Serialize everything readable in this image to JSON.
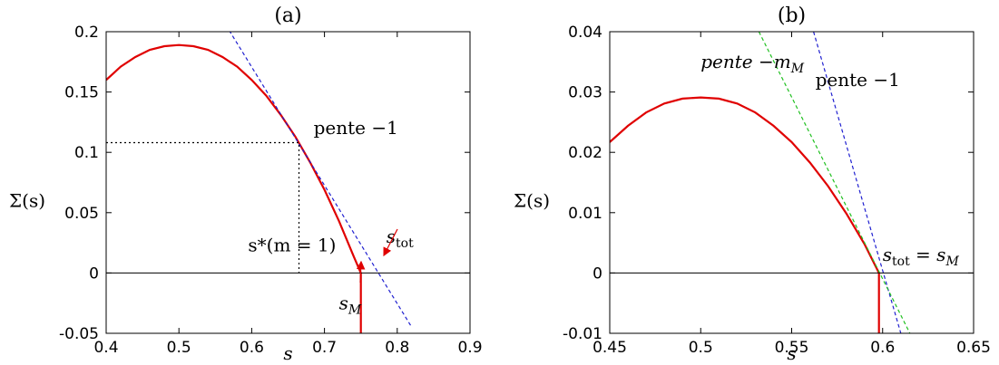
{
  "chart_data": [
    {
      "type": "line",
      "title": "(a)",
      "xlabel": "s",
      "ylabel": "Σ(s)",
      "xlim": [
        0.4,
        0.9
      ],
      "ylim": [
        -0.05,
        0.2
      ],
      "xticks": [
        0.4,
        0.5,
        0.6,
        0.7,
        0.8,
        0.9
      ],
      "xtick_labels": [
        "0.4",
        "0.5",
        "0.6",
        "0.7",
        "0.8",
        "0.9"
      ],
      "yticks": [
        -0.05,
        0,
        0.05,
        0.1,
        0.15,
        0.2
      ],
      "ytick_labels": [
        "-0.05",
        "0",
        "0.05",
        "0.1",
        "0.15",
        "0.2"
      ],
      "grid": false,
      "series": [
        {
          "color": "#e00000",
          "style": "solid",
          "x": [
            0.4,
            0.42,
            0.44,
            0.46,
            0.48,
            0.5,
            0.52,
            0.54,
            0.56,
            0.58,
            0.6,
            0.62,
            0.64,
            0.66,
            0.68,
            0.7,
            0.72,
            0.74,
            0.75
          ],
          "y": [
            0.16,
            0.171,
            0.179,
            0.185,
            0.188,
            0.189,
            0.188,
            0.185,
            0.179,
            0.171,
            0.16,
            0.147,
            0.131,
            0.113,
            0.092,
            0.069,
            0.043,
            0.014,
            0.0
          ]
        },
        {
          "color": "#e00000",
          "style": "solid",
          "x": [
            0.75,
            0.75
          ],
          "y": [
            0.0,
            -0.05
          ]
        },
        {
          "color": "#2020d0",
          "style": "dashed",
          "x": [
            0.56,
            0.82
          ],
          "y": [
            0.21,
            -0.045
          ]
        },
        {
          "color": "#000000",
          "style": "dotted",
          "x": [
            0.4,
            0.665,
            0.665
          ],
          "y": [
            0.108,
            0.108,
            0.0
          ]
        },
        {
          "color": "#000000",
          "style": "solid",
          "x": [
            0.4,
            0.9
          ],
          "y": [
            0.0,
            0.0
          ]
        }
      ],
      "annotations": [
        {
          "text": "pente −1",
          "x": 0.685,
          "y": 0.115
        },
        {
          "text": "s*(m = 1)",
          "x": 0.595,
          "y": 0.018
        },
        {
          "text_main": "s",
          "text_sub": "tot",
          "x": 0.785,
          "y": 0.025
        },
        {
          "text_main": "s",
          "text_sub": "M",
          "x": 0.72,
          "y": -0.03
        }
      ]
    },
    {
      "type": "line",
      "title": "(b)",
      "xlabel": "s",
      "ylabel": "Σ(s)",
      "xlim": [
        0.45,
        0.65
      ],
      "ylim": [
        -0.01,
        0.04
      ],
      "xticks": [
        0.45,
        0.5,
        0.55,
        0.6,
        0.65
      ],
      "xtick_labels": [
        "0.45",
        "0.5",
        "0.55",
        "0.6",
        "0.65"
      ],
      "yticks": [
        -0.01,
        0,
        0.01,
        0.02,
        0.03,
        0.04
      ],
      "ytick_labels": [
        "-0.01",
        "0",
        "0.01",
        "0.02",
        "0.03",
        "0.04"
      ],
      "grid": false,
      "series": [
        {
          "color": "#e00000",
          "style": "solid",
          "x": [
            0.45,
            0.46,
            0.47,
            0.48,
            0.49,
            0.5,
            0.51,
            0.52,
            0.53,
            0.54,
            0.55,
            0.56,
            0.57,
            0.58,
            0.59,
            0.598
          ],
          "y": [
            0.0217,
            0.0244,
            0.0266,
            0.0281,
            0.0289,
            0.0291,
            0.0289,
            0.0281,
            0.0266,
            0.0244,
            0.0217,
            0.0183,
            0.0144,
            0.0099,
            0.0048,
            0.0
          ]
        },
        {
          "color": "#e00000",
          "style": "solid",
          "x": [
            0.598,
            0.598
          ],
          "y": [
            0.0,
            -0.01
          ]
        },
        {
          "color": "#2020d0",
          "style": "dashed",
          "x": [
            0.562,
            0.61
          ],
          "y": [
            0.04,
            -0.01
          ]
        },
        {
          "color": "#20c020",
          "style": "dashed",
          "x": [
            0.532,
            0.615
          ],
          "y": [
            0.04,
            -0.01
          ]
        },
        {
          "color": "#000000",
          "style": "solid",
          "x": [
            0.45,
            0.65
          ],
          "y": [
            0.0,
            0.0
          ]
        }
      ],
      "annotations": [
        {
          "text_main": "pente −m",
          "text_sub": "M",
          "x": 0.5,
          "y": 0.034
        },
        {
          "text": "pente −1",
          "x": 0.563,
          "y": 0.031
        },
        {
          "text_main": "s",
          "text_sub": "tot",
          "text_tail": " = s",
          "text_sub2": "M",
          "x": 0.6,
          "y": 0.002
        }
      ]
    }
  ]
}
